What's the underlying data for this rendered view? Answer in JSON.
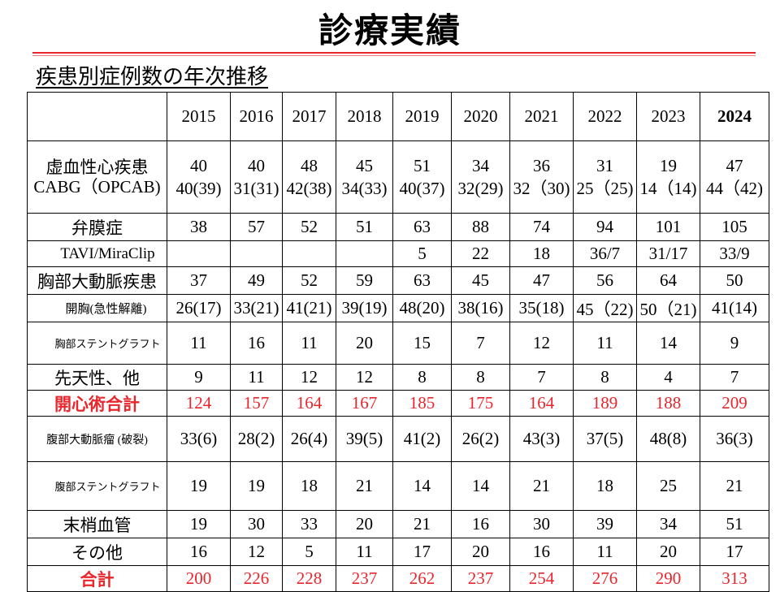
{
  "title": "診療実績",
  "subtitle": "疾患別症例数の年次推移",
  "years": [
    "2015",
    "2016",
    "2017",
    "2018",
    "2019",
    "2020",
    "2021",
    "2022",
    "2023",
    "2024"
  ],
  "rows": [
    {
      "label": "虚血性心疾患",
      "label2": "CABG（OPCAB)",
      "values": [
        "40",
        "40",
        "48",
        "45",
        "51",
        "34",
        "36",
        "31",
        "19",
        "47"
      ],
      "values2": [
        "40(39)",
        "31(31)",
        "42(38)",
        "34(33)",
        "40(37)",
        "32(29)",
        "32（30)",
        "25（25)",
        "14（14)",
        "44（42)"
      ]
    },
    {
      "label": "弁膜症",
      "values": [
        "38",
        "57",
        "52",
        "51",
        "63",
        "88",
        "74",
        "94",
        "101",
        "105"
      ]
    },
    {
      "label": "TAVI/MiraClip",
      "values": [
        "",
        "",
        "",
        "",
        "5",
        "22",
        "18",
        "36/7",
        "31/17",
        "33/9"
      ]
    },
    {
      "label": "胸部大動脈疾患",
      "values": [
        "37",
        "49",
        "52",
        "59",
        "63",
        "45",
        "47",
        "56",
        "64",
        "50"
      ]
    },
    {
      "label": "開胸(急性解離)",
      "values": [
        "26(17)",
        "33(21)",
        "41(21)",
        "39(19)",
        "48(20)",
        "38(16)",
        "35(18)",
        "45（22)",
        "50（21)",
        "41(14)"
      ]
    },
    {
      "label": "胸部ステントグラフト",
      "values": [
        "11",
        "16",
        "11",
        "20",
        "15",
        "7",
        "12",
        "11",
        "14",
        "9"
      ]
    },
    {
      "label": "先天性、他",
      "values": [
        "9",
        "11",
        "12",
        "12",
        "8",
        "8",
        "7",
        "8",
        "4",
        "7"
      ]
    },
    {
      "label": "開心術合計",
      "values": [
        "124",
        "157",
        "164",
        "167",
        "185",
        "175",
        "164",
        "189",
        "188",
        "209"
      ]
    },
    {
      "label": "腹部大動脈瘤 (破裂)",
      "values": [
        "33(6)",
        "28(2)",
        "26(4)",
        "39(5)",
        "41(2)",
        "26(2)",
        "43(3)",
        "37(5)",
        "48(8)",
        "36(3)"
      ]
    },
    {
      "label": "腹部ステントグラフト",
      "values": [
        "19",
        "19",
        "18",
        "21",
        "14",
        "14",
        "21",
        "18",
        "25",
        "21"
      ]
    },
    {
      "label": "末梢血管",
      "values": [
        "19",
        "30",
        "33",
        "20",
        "21",
        "16",
        "30",
        "39",
        "34",
        "51"
      ]
    },
    {
      "label": "その他",
      "values": [
        "16",
        "12",
        "5",
        "11",
        "17",
        "20",
        "16",
        "11",
        "20",
        "17"
      ]
    },
    {
      "label": "合計",
      "values": [
        "200",
        "226",
        "228",
        "237",
        "262",
        "237",
        "254",
        "276",
        "290",
        "313"
      ]
    }
  ],
  "colors": {
    "accent": "#e8262c",
    "text": "#000000",
    "line": "#e8262c"
  }
}
